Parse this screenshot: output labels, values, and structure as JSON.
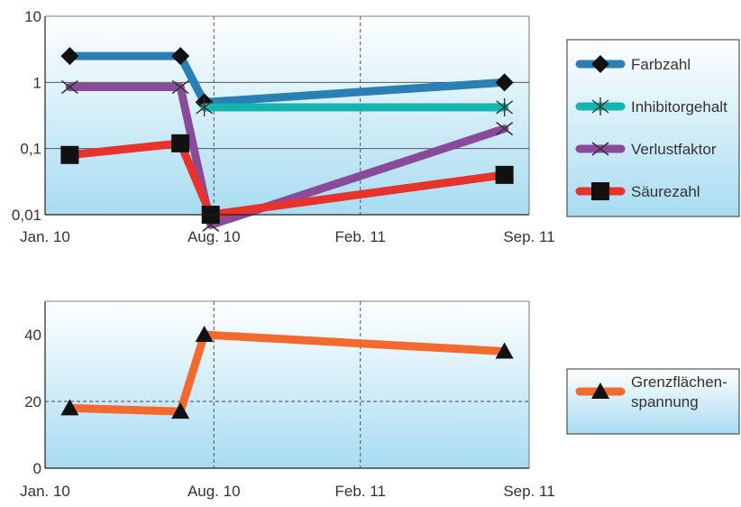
{
  "chart_data": [
    {
      "type": "line",
      "yscale": "log",
      "ylim": [
        0.01,
        10
      ],
      "yticks": [
        "0,01",
        "0,1",
        "1",
        "10"
      ],
      "xlim": [
        "2010-01-01",
        "2011-09-01"
      ],
      "xticks": [
        {
          "date": "2010-01-01",
          "label": "Jan. 10"
        },
        {
          "date": "2010-08-01",
          "label": "Aug. 10"
        },
        {
          "date": "2011-02-01",
          "label": "Feb. 11"
        },
        {
          "date": "2011-09-01",
          "label": "Sep. 11"
        }
      ],
      "grid": "vertical dashed, horizontal solid",
      "legend_position": "right",
      "series": [
        {
          "name": "Farbzahl",
          "color": "#2a7fb5",
          "marker": "diamond",
          "points": [
            [
              "2010-02-01",
              2.5
            ],
            [
              "2010-06-20",
              2.5
            ],
            [
              "2010-07-20",
              0.5
            ],
            [
              "2011-08-01",
              1.0
            ]
          ]
        },
        {
          "name": "Inhibitorgehalt",
          "color": "#14b5b0",
          "marker": "asterisk",
          "points": [
            [
              "2010-07-20",
              0.42
            ],
            [
              "2011-08-01",
              0.42
            ]
          ]
        },
        {
          "name": "Verlustfaktor",
          "color": "#8a4a9a",
          "marker": "x",
          "points": [
            [
              "2010-02-01",
              0.85
            ],
            [
              "2010-06-20",
              0.85
            ],
            [
              "2010-07-28",
              0.007
            ],
            [
              "2011-08-01",
              0.2
            ]
          ]
        },
        {
          "name": "Säurezahl",
          "color": "#e8332c",
          "marker": "square",
          "points": [
            [
              "2010-02-01",
              0.08
            ],
            [
              "2010-06-20",
              0.12
            ],
            [
              "2010-07-28",
              0.01
            ],
            [
              "2011-08-01",
              0.04
            ]
          ]
        }
      ]
    },
    {
      "type": "line",
      "ylim": [
        0,
        50
      ],
      "yticks": [
        "0",
        "20",
        "40"
      ],
      "xlim": [
        "2010-01-01",
        "2011-09-01"
      ],
      "xticks": [
        {
          "date": "2010-01-01",
          "label": "Jan. 10"
        },
        {
          "date": "2010-08-01",
          "label": "Aug. 10"
        },
        {
          "date": "2011-02-01",
          "label": "Feb. 11"
        },
        {
          "date": "2011-09-01",
          "label": "Sep. 11"
        }
      ],
      "grid": "vertical dashed, horizontal dashed",
      "legend_position": "right",
      "series": [
        {
          "name": "Grenzflächen-\nspannung",
          "color": "#f26a2e",
          "marker": "triangle",
          "points": [
            [
              "2010-02-01",
              18
            ],
            [
              "2010-06-20",
              17
            ],
            [
              "2010-07-20",
              40
            ],
            [
              "2011-08-01",
              35
            ]
          ]
        }
      ]
    }
  ]
}
